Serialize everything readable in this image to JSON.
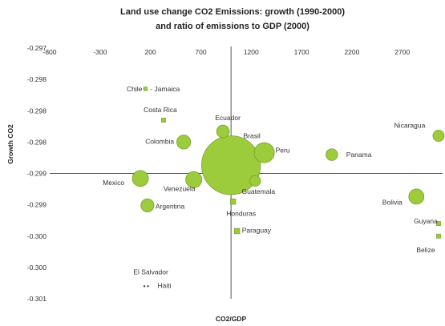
{
  "chart_data": {
    "type": "scatter",
    "title": "Land use change CO2 Emissions: growth (1990-2000)",
    "subtitle": "and ratio of emissions to GDP (2000)",
    "xlabel": "CO2/GDP",
    "ylabel": "Growth CO2",
    "xlim": [
      -800,
      3100
    ],
    "ylim": [
      -0.301,
      -0.297
    ],
    "x_ticks": [
      "-800",
      "-300",
      "200",
      "700",
      "1200",
      "1700",
      "2200",
      "2700"
    ],
    "y_ticks": [
      "-0.297",
      "-0.298",
      "-0.298",
      "-0.298",
      "-0.299",
      "-0.299",
      "-0.300",
      "-0.300",
      "-0.301"
    ],
    "y_tick_values": [
      -0.297,
      -0.2975,
      -0.298,
      -0.2985,
      -0.299,
      -0.2995,
      -0.3,
      -0.3005,
      -0.301
    ],
    "grid": false,
    "bubble_color": "#9ccb3c",
    "bubble_stroke": "#6e9a24",
    "points": [
      {
        "name": "Chile",
        "x": 150,
        "y": -0.29765,
        "size": 2
      },
      {
        "name": "Jamaica",
        "x": 150,
        "y": -0.29765,
        "size": 2
      },
      {
        "name": "Costa Rica",
        "x": 330,
        "y": -0.29815,
        "size": 3
      },
      {
        "name": "Colombia",
        "x": 530,
        "y": -0.2985,
        "size": 34
      },
      {
        "name": "Ecuador",
        "x": 920,
        "y": -0.29833,
        "size": 28
      },
      {
        "name": "Brasil",
        "x": 1000,
        "y": -0.29887,
        "size": 600
      },
      {
        "name": "Peru",
        "x": 1330,
        "y": -0.29867,
        "size": 70
      },
      {
        "name": "Nicaragua",
        "x": 3060,
        "y": -0.2984,
        "size": 22
      },
      {
        "name": "Panama",
        "x": 2000,
        "y": -0.2987,
        "size": 24
      },
      {
        "name": "Mexico",
        "x": 100,
        "y": -0.29908,
        "size": 45
      },
      {
        "name": "Venezuela",
        "x": 630,
        "y": -0.2991,
        "size": 45
      },
      {
        "name": "Guatemala",
        "x": 1240,
        "y": -0.29912,
        "size": 20
      },
      {
        "name": "Argentina",
        "x": 170,
        "y": -0.29951,
        "size": 30
      },
      {
        "name": "Bolivia",
        "x": 2840,
        "y": -0.29937,
        "size": 40
      },
      {
        "name": "Honduras",
        "x": 1020,
        "y": -0.29945,
        "size": 5
      },
      {
        "name": "Guyana",
        "x": 3060,
        "y": -0.2998,
        "size": 3
      },
      {
        "name": "Belize",
        "x": 3060,
        "y": -0.3,
        "size": 3
      },
      {
        "name": "Paraguay",
        "x": 1060,
        "y": -0.29992,
        "size": 5
      },
      {
        "name": "El Salvador",
        "x": 140,
        "y": -0.3008,
        "size": 0.6
      },
      {
        "name": "Haiti",
        "x": 175,
        "y": -0.3008,
        "size": 0.6
      }
    ],
    "labels": [
      {
        "text": "Chile",
        "ref": "Chile"
      },
      {
        "text": "- Jamaica",
        "ref": "Jamaica"
      },
      {
        "text": "Costa Rica",
        "ref": "Costa Rica"
      },
      {
        "text": "Colombia",
        "ref": "Colombia"
      },
      {
        "text": "Ecuador",
        "ref": "Ecuador"
      },
      {
        "text": "Brasil",
        "ref": "Brasil"
      },
      {
        "text": "Peru",
        "ref": "Peru"
      },
      {
        "text": "Nicaragua",
        "ref": "Nicaragua"
      },
      {
        "text": "Panama",
        "ref": "Panama"
      },
      {
        "text": "Mexico",
        "ref": "Mexico"
      },
      {
        "text": "Venezuela",
        "ref": "Venezuela"
      },
      {
        "text": "Guatemala",
        "ref": "Guatemala"
      },
      {
        "text": "Argentina",
        "ref": "Argentina"
      },
      {
        "text": "Bolivia",
        "ref": "Bolivia"
      },
      {
        "text": "Honduras",
        "ref": "Honduras"
      },
      {
        "text": "Guyana",
        "ref": "Guyana"
      },
      {
        "text": "Belize",
        "ref": "Belize"
      },
      {
        "text": "Paraguay",
        "ref": "Paraguay"
      },
      {
        "text": "El Salvador",
        "ref": "El Salvador"
      },
      {
        "text": "Haiti",
        "ref": "Haiti"
      }
    ]
  }
}
